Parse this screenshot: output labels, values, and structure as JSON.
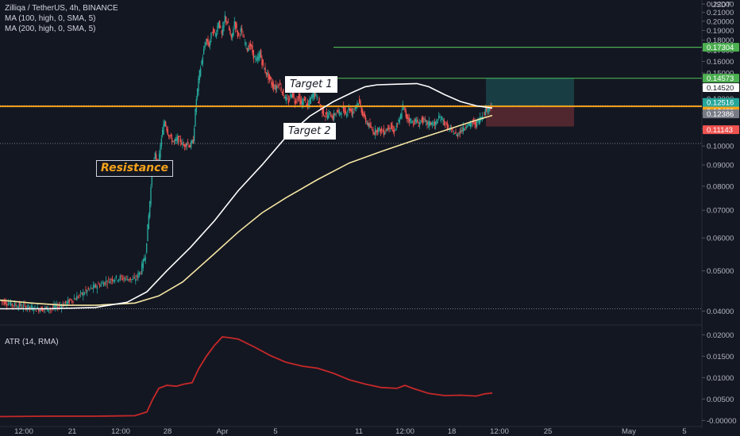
{
  "header": {
    "symbol_line": "Zilliqa / TetherUS, 4h, BINANCE",
    "ma100_label": "MA (100, high, 0, SMA, 5)",
    "ma200_label": "MA (200, high, 0, SMA, 5)",
    "currency": "USDT"
  },
  "indicator": {
    "label": "ATR (14, RMA)"
  },
  "annotations": {
    "resistance": "Resistance",
    "target1": "Target 1",
    "target2": "Target 2"
  },
  "colors": {
    "background": "#131722",
    "up": "#26a69a",
    "down": "#ef5350",
    "ma100": "#ffffff",
    "ma200": "#f5e6a3",
    "resistance": "#f7a21b",
    "target_line": "#4caf50",
    "atr": "#c62828"
  },
  "price_badges": [
    {
      "text": "0.17304",
      "value": 0.17304,
      "bg": "#4caf50",
      "fg": "#ffffff"
    },
    {
      "text": "0.14573",
      "value": 0.14573,
      "bg": "#4caf50",
      "fg": "#ffffff"
    },
    {
      "text": "0.14520",
      "value": 0.1452,
      "bg": "#ffffff",
      "fg": "#131722"
    },
    {
      "text": "0.12516",
      "value": 0.12516,
      "bg": "#26a69a",
      "fg": "#ffffff",
      "sub": "02:38:44"
    },
    {
      "text": "0.12469",
      "value": 0.12469,
      "bg": "#f7a21b",
      "fg": "#ffffff"
    },
    {
      "text": "0.12386",
      "value": 0.12386,
      "bg": "#787b86",
      "fg": "#ffffff"
    },
    {
      "text": "0.11143",
      "value": 0.11143,
      "bg": "#ef5350",
      "fg": "#ffffff"
    }
  ],
  "chart_data": {
    "type": "candlestick",
    "price_axis": {
      "scale": "log",
      "ticks": [
        "0.22000",
        "0.21000",
        "0.20000",
        "0.19000",
        "0.18000",
        "0.17000",
        "0.16000",
        "0.15000",
        "0.14000",
        "0.13000",
        "0.12000",
        "0.11000",
        "0.10000",
        "0.09000",
        "0.08000",
        "0.07000",
        "0.06000",
        "0.05000",
        "0.04000"
      ],
      "range": [
        0.038,
        0.225
      ]
    },
    "atr_axis": {
      "ticks": [
        "0.02000",
        "0.01500",
        "0.01000",
        "0.00500",
        "-0.00000"
      ],
      "range": [
        -0.0003,
        0.0208
      ]
    },
    "time_axis": {
      "labels": [
        "12:00",
        "21",
        "12:00",
        "28",
        "Apr",
        "5",
        "11",
        "12:00",
        "18",
        "12:00",
        "25",
        "May",
        "5"
      ]
    },
    "levels": {
      "resistance": 0.12469,
      "target1": 0.17304,
      "target2": 0.14573,
      "dotted_high": 0.12516,
      "dotted_low": 0.1014
    },
    "position": {
      "entry": 0.12469,
      "take_profit": 0.14573,
      "stop_loss": 0.11143
    },
    "series": [
      {
        "name": "Zilliqa / TetherUS",
        "kind": "price_path",
        "points": [
          [
            0,
            0.0425
          ],
          [
            16,
            0.0415
          ],
          [
            32,
            0.041
          ],
          [
            48,
            0.0405
          ],
          [
            64,
            0.0405
          ],
          [
            80,
            0.0415
          ],
          [
            96,
            0.043
          ],
          [
            112,
            0.045
          ],
          [
            128,
            0.0465
          ],
          [
            144,
            0.048
          ],
          [
            160,
            0.048
          ],
          [
            170,
            0.0475
          ],
          [
            178,
            0.05
          ],
          [
            184,
            0.055
          ],
          [
            188,
            0.068
          ],
          [
            192,
            0.085
          ],
          [
            196,
            0.095
          ],
          [
            200,
            0.089
          ],
          [
            204,
            0.105
          ],
          [
            208,
            0.115
          ],
          [
            212,
            0.108
          ],
          [
            216,
            0.104
          ],
          [
            220,
            0.102
          ],
          [
            224,
            0.104
          ],
          [
            228,
            0.103
          ],
          [
            232,
            0.1
          ],
          [
            236,
            0.102
          ],
          [
            240,
            0.1
          ],
          [
            244,
            0.103
          ],
          [
            248,
            0.13
          ],
          [
            252,
            0.15
          ],
          [
            256,
            0.165
          ],
          [
            260,
            0.18
          ],
          [
            264,
            0.175
          ],
          [
            268,
            0.19
          ],
          [
            272,
            0.185
          ],
          [
            276,
            0.2
          ],
          [
            280,
            0.185
          ],
          [
            284,
            0.205
          ],
          [
            288,
            0.195
          ],
          [
            292,
            0.18
          ],
          [
            296,
            0.2
          ],
          [
            300,
            0.185
          ],
          [
            304,
            0.19
          ],
          [
            308,
            0.18
          ],
          [
            312,
            0.172
          ],
          [
            316,
            0.175
          ],
          [
            320,
            0.165
          ],
          [
            324,
            0.16
          ],
          [
            328,
            0.168
          ],
          [
            332,
            0.155
          ],
          [
            336,
            0.15
          ],
          [
            340,
            0.145
          ],
          [
            344,
            0.14
          ],
          [
            348,
            0.138
          ],
          [
            352,
            0.142
          ],
          [
            356,
            0.135
          ],
          [
            360,
            0.13
          ],
          [
            364,
            0.128
          ],
          [
            368,
            0.135
          ],
          [
            372,
            0.128
          ],
          [
            376,
            0.132
          ],
          [
            380,
            0.126
          ],
          [
            384,
            0.13
          ],
          [
            388,
            0.124
          ],
          [
            392,
            0.13
          ],
          [
            396,
            0.135
          ],
          [
            400,
            0.13
          ],
          [
            404,
            0.125
          ],
          [
            408,
            0.12
          ],
          [
            412,
            0.118
          ],
          [
            416,
            0.12
          ],
          [
            420,
            0.117
          ],
          [
            424,
            0.121
          ],
          [
            428,
            0.12
          ],
          [
            432,
            0.123
          ],
          [
            436,
            0.12
          ],
          [
            440,
            0.124
          ],
          [
            444,
            0.12
          ],
          [
            448,
            0.125
          ],
          [
            452,
            0.128
          ],
          [
            456,
            0.122
          ],
          [
            460,
            0.116
          ],
          [
            464,
            0.113
          ],
          [
            468,
            0.11
          ],
          [
            472,
            0.108
          ],
          [
            476,
            0.11
          ],
          [
            480,
            0.109
          ],
          [
            484,
            0.108
          ],
          [
            488,
            0.11
          ],
          [
            492,
            0.112
          ],
          [
            496,
            0.108
          ],
          [
            500,
            0.112
          ],
          [
            504,
            0.115
          ],
          [
            508,
            0.125
          ],
          [
            512,
            0.118
          ],
          [
            516,
            0.116
          ],
          [
            520,
            0.114
          ],
          [
            524,
            0.115
          ],
          [
            528,
            0.113
          ],
          [
            532,
            0.116
          ],
          [
            536,
            0.114
          ],
          [
            540,
            0.113
          ],
          [
            544,
            0.114
          ],
          [
            548,
            0.112
          ],
          [
            552,
            0.116
          ],
          [
            556,
            0.117
          ],
          [
            560,
            0.114
          ],
          [
            564,
            0.111
          ],
          [
            568,
            0.109
          ],
          [
            572,
            0.108
          ],
          [
            576,
            0.106
          ],
          [
            580,
            0.109
          ],
          [
            584,
            0.11
          ],
          [
            588,
            0.113
          ],
          [
            592,
            0.112
          ],
          [
            596,
            0.114
          ],
          [
            600,
            0.113
          ],
          [
            604,
            0.116
          ],
          [
            608,
            0.118
          ],
          [
            612,
            0.122
          ],
          [
            616,
            0.124
          ],
          [
            620,
            0.125
          ]
        ]
      },
      {
        "name": "MA (100, high, 0, SMA, 5)",
        "kind": "line",
        "points": [
          [
            0,
            0.0405
          ],
          [
            60,
            0.0405
          ],
          [
            120,
            0.0408
          ],
          [
            160,
            0.042
          ],
          [
            185,
            0.0445
          ],
          [
            210,
            0.05
          ],
          [
            240,
            0.057
          ],
          [
            270,
            0.066
          ],
          [
            300,
            0.078
          ],
          [
            330,
            0.09
          ],
          [
            360,
            0.105
          ],
          [
            390,
            0.118
          ],
          [
            420,
            0.128
          ],
          [
            445,
            0.135
          ],
          [
            460,
            0.139
          ],
          [
            475,
            0.1405
          ],
          [
            500,
            0.141
          ],
          [
            525,
            0.1415
          ],
          [
            540,
            0.139
          ],
          [
            560,
            0.133
          ],
          [
            580,
            0.128
          ],
          [
            600,
            0.125
          ],
          [
            620,
            0.1235
          ]
        ]
      },
      {
        "name": "MA (200, high, 0, SMA, 5)",
        "kind": "line",
        "points": [
          [
            0,
            0.0425
          ],
          [
            40,
            0.0418
          ],
          [
            80,
            0.0413
          ],
          [
            120,
            0.0413
          ],
          [
            170,
            0.0418
          ],
          [
            200,
            0.0435
          ],
          [
            230,
            0.047
          ],
          [
            270,
            0.055
          ],
          [
            300,
            0.062
          ],
          [
            330,
            0.069
          ],
          [
            360,
            0.075
          ],
          [
            400,
            0.083
          ],
          [
            440,
            0.091
          ],
          [
            480,
            0.097
          ],
          [
            520,
            0.103
          ],
          [
            560,
            0.109
          ],
          [
            600,
            0.1155
          ],
          [
            620,
            0.1185
          ]
        ]
      },
      {
        "name": "ATR (14, RMA)",
        "kind": "line",
        "points": [
          [
            0,
            0.0009
          ],
          [
            60,
            0.001
          ],
          [
            120,
            0.001
          ],
          [
            170,
            0.0011
          ],
          [
            185,
            0.002
          ],
          [
            192,
            0.0048
          ],
          [
            200,
            0.0075
          ],
          [
            210,
            0.0082
          ],
          [
            222,
            0.008
          ],
          [
            232,
            0.0085
          ],
          [
            242,
            0.0088
          ],
          [
            250,
            0.012
          ],
          [
            260,
            0.015
          ],
          [
            270,
            0.0175
          ],
          [
            280,
            0.0195
          ],
          [
            290,
            0.0193
          ],
          [
            300,
            0.019
          ],
          [
            320,
            0.0172
          ],
          [
            340,
            0.0152
          ],
          [
            360,
            0.0136
          ],
          [
            380,
            0.0127
          ],
          [
            400,
            0.0122
          ],
          [
            420,
            0.011
          ],
          [
            440,
            0.0095
          ],
          [
            460,
            0.0085
          ],
          [
            480,
            0.0077
          ],
          [
            500,
            0.0075
          ],
          [
            510,
            0.0082
          ],
          [
            520,
            0.0075
          ],
          [
            540,
            0.0063
          ],
          [
            560,
            0.0058
          ],
          [
            580,
            0.0059
          ],
          [
            600,
            0.0057
          ],
          [
            610,
            0.0062
          ],
          [
            620,
            0.0064
          ]
        ]
      }
    ]
  }
}
